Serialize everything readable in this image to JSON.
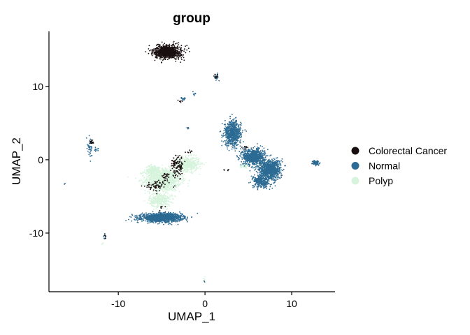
{
  "chart_data": {
    "type": "scatter",
    "title": "group",
    "xlabel": "UMAP_1",
    "ylabel": "UMAP_2",
    "xlim": [
      -18,
      15
    ],
    "ylim": [
      -18,
      17.5
    ],
    "x_ticks": [
      -10,
      0,
      10
    ],
    "y_ticks": [
      -10,
      0,
      10
    ],
    "x_tick_labels": [
      "-10",
      "0",
      "10"
    ],
    "y_tick_labels": [
      "-10",
      "0",
      "10"
    ],
    "grid": false,
    "legend_position": "right",
    "series": [
      {
        "name": "Colorectal Cancer",
        "color": "#1a0f10",
        "clusters": [
          {
            "cx": -4.3,
            "cy": 14.7,
            "sx": 1.3,
            "sy": 0.75,
            "n": 900
          },
          {
            "cx": -3.2,
            "cy": -0.8,
            "sx": 0.6,
            "sy": 1.2,
            "n": 120
          },
          {
            "cx": -5.5,
            "cy": -3.6,
            "sx": 1.1,
            "sy": 0.6,
            "n": 70
          },
          {
            "cx": -4.6,
            "cy": -2.4,
            "sx": 0.4,
            "sy": 0.5,
            "n": 25
          },
          {
            "cx": -13.0,
            "cy": 2.4,
            "sx": 0.25,
            "sy": 0.3,
            "n": 15
          },
          {
            "cx": 1.3,
            "cy": 11.3,
            "sx": 0.2,
            "sy": 0.3,
            "n": 12
          },
          {
            "cx": 4.6,
            "cy": 1.8,
            "sx": 0.3,
            "sy": 0.3,
            "n": 10
          },
          {
            "cx": -2.8,
            "cy": 8.0,
            "sx": 0.2,
            "sy": 0.15,
            "n": 6
          },
          {
            "cx": -1.8,
            "cy": 1.1,
            "sx": 0.4,
            "sy": 0.2,
            "n": 8
          },
          {
            "cx": -11.5,
            "cy": -10.4,
            "sx": 0.15,
            "sy": 0.3,
            "n": 5
          },
          {
            "cx": 2.5,
            "cy": -1.4,
            "sx": 0.4,
            "sy": 0.1,
            "n": 5
          },
          {
            "cx": -5.0,
            "cy": -6.5,
            "sx": 0.4,
            "sy": 0.3,
            "n": 6
          }
        ]
      },
      {
        "name": "Normal",
        "color": "#2c6b93",
        "clusters": [
          {
            "cx": -5.0,
            "cy": -7.9,
            "sx": 1.9,
            "sy": 0.45,
            "n": 1400
          },
          {
            "cx": 3.2,
            "cy": 3.6,
            "sx": 0.8,
            "sy": 1.4,
            "n": 700
          },
          {
            "cx": 5.6,
            "cy": 0.4,
            "sx": 1.0,
            "sy": 0.9,
            "n": 800
          },
          {
            "cx": 7.5,
            "cy": -1.3,
            "sx": 1.0,
            "sy": 1.1,
            "n": 900
          },
          {
            "cx": 6.5,
            "cy": -3.0,
            "sx": 0.8,
            "sy": 0.7,
            "n": 300
          },
          {
            "cx": 12.8,
            "cy": -0.4,
            "sx": 0.3,
            "sy": 0.25,
            "n": 90
          },
          {
            "cx": 1.3,
            "cy": 11.3,
            "sx": 0.2,
            "sy": 0.3,
            "n": 20
          },
          {
            "cx": -13.3,
            "cy": 1.5,
            "sx": 0.3,
            "sy": 1.1,
            "n": 40
          },
          {
            "cx": -12.5,
            "cy": 1.3,
            "sx": 0.2,
            "sy": 0.2,
            "n": 12
          },
          {
            "cx": -2.5,
            "cy": 8.3,
            "sx": 0.25,
            "sy": 0.2,
            "n": 15
          },
          {
            "cx": -1.9,
            "cy": 4.3,
            "sx": 0.15,
            "sy": 0.1,
            "n": 6
          },
          {
            "cx": -1.2,
            "cy": 9.0,
            "sx": 0.2,
            "sy": 0.2,
            "n": 8
          },
          {
            "cx": -16.2,
            "cy": -3.3,
            "sx": 0.1,
            "sy": 0.1,
            "n": 3
          },
          {
            "cx": -11.6,
            "cy": -10.6,
            "sx": 0.15,
            "sy": 0.4,
            "n": 8
          },
          {
            "cx": -0.1,
            "cy": -16.6,
            "sx": 0.1,
            "sy": 0.2,
            "n": 3
          }
        ]
      },
      {
        "name": "Polyp",
        "color": "#d6f3dc",
        "clusters": [
          {
            "cx": -4.8,
            "cy": -2.7,
            "sx": 1.7,
            "sy": 1.3,
            "n": 1200
          },
          {
            "cx": -2.0,
            "cy": -0.6,
            "sx": 1.1,
            "sy": 0.8,
            "n": 500
          },
          {
            "cx": -5.2,
            "cy": -5.5,
            "sx": 1.0,
            "sy": 0.8,
            "n": 350
          },
          {
            "cx": -6.0,
            "cy": -1.5,
            "sx": 0.7,
            "sy": 0.6,
            "n": 200
          },
          {
            "cx": 4.5,
            "cy": -0.8,
            "sx": 0.4,
            "sy": 0.3,
            "n": 40
          },
          {
            "cx": -0.1,
            "cy": -16.3,
            "sx": 0.1,
            "sy": 0.2,
            "n": 4
          },
          {
            "cx": -11.8,
            "cy": -11.4,
            "sx": 0.1,
            "sy": 0.1,
            "n": 3
          }
        ]
      }
    ]
  }
}
